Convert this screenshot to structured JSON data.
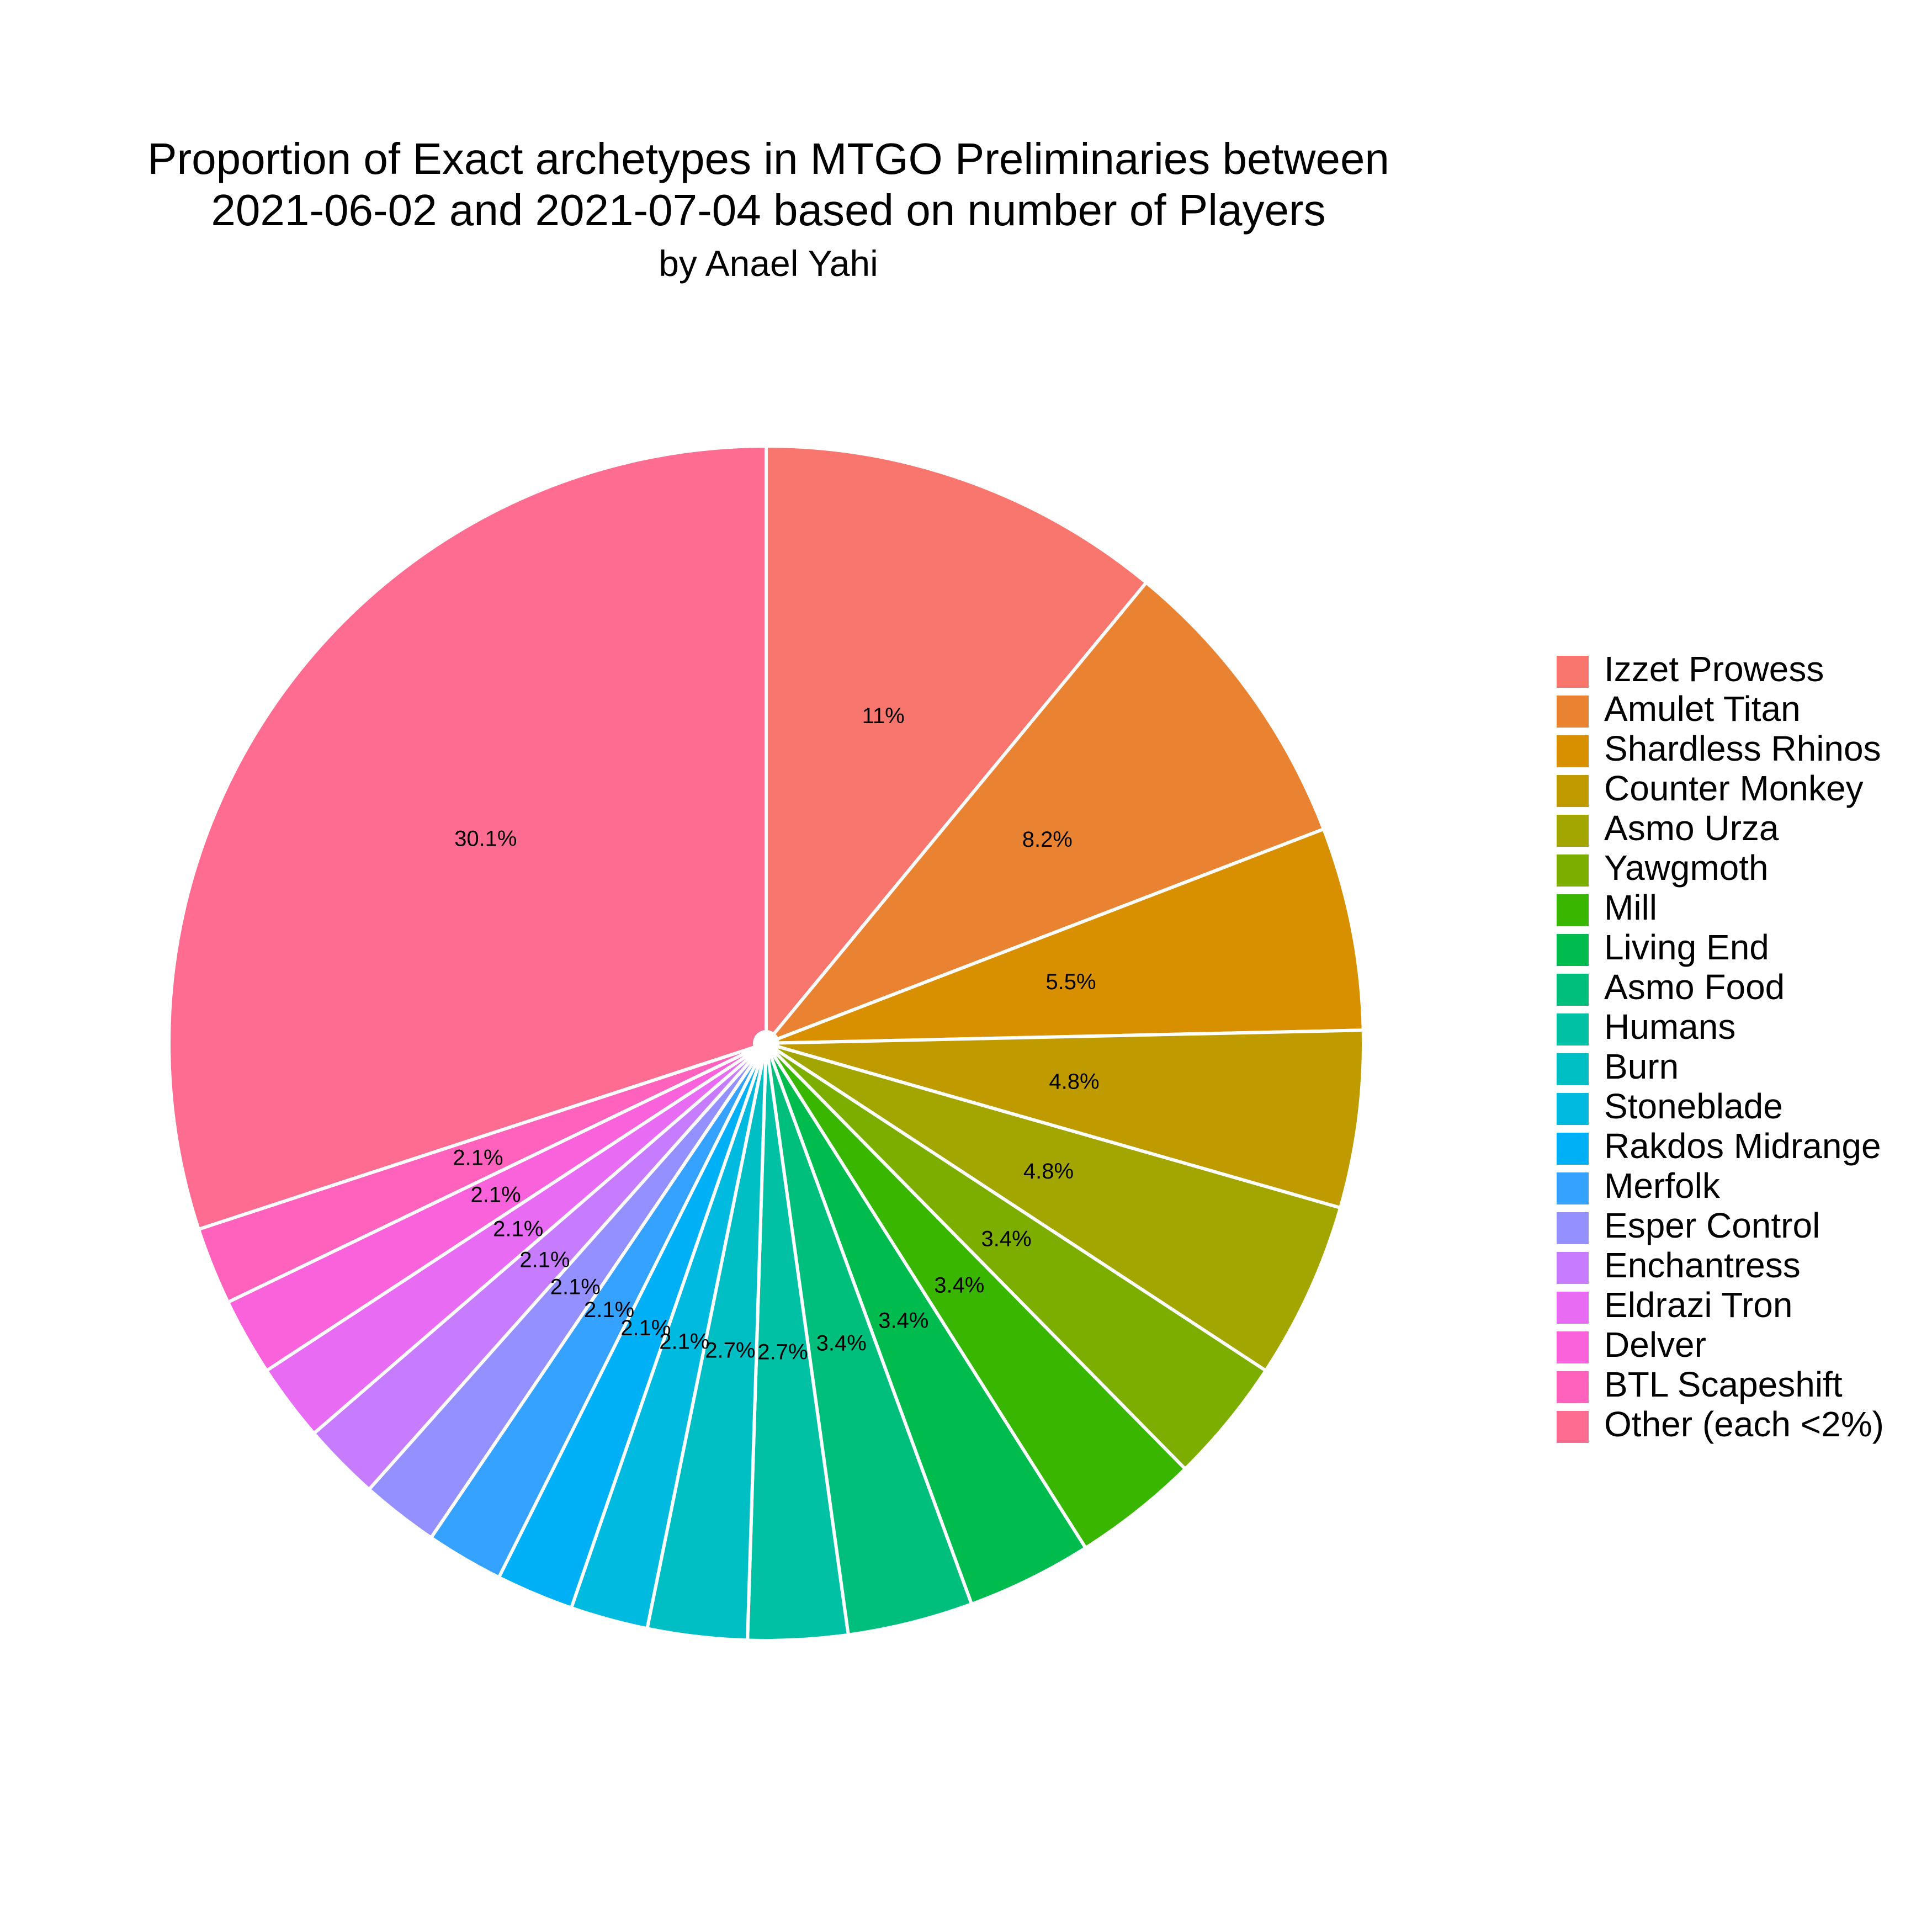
{
  "chart_data": {
    "type": "pie",
    "title_lines": [
      "Proportion of Exact archetypes in MTGO Preliminaries between",
      "2021-06-02 and 2021-07-04 based on number of Players"
    ],
    "subtitle": "by Anael Yahi",
    "legend_position": "right",
    "direction": "clockwise",
    "start_angle": "12 o'clock",
    "slices": [
      {
        "name": "Izzet Prowess",
        "value": 11.0,
        "label": "11%",
        "color": "#F8766D"
      },
      {
        "name": "Amulet Titan",
        "value": 8.2,
        "label": "8.2%",
        "color": "#EA8331"
      },
      {
        "name": "Shardless Rhinos",
        "value": 5.5,
        "label": "5.5%",
        "color": "#D89000"
      },
      {
        "name": "Counter Monkey",
        "value": 4.8,
        "label": "4.8%",
        "color": "#C09B00"
      },
      {
        "name": "Asmo Urza",
        "value": 4.8,
        "label": "4.8%",
        "color": "#A3A500"
      },
      {
        "name": "Yawgmoth",
        "value": 3.4,
        "label": "3.4%",
        "color": "#7CAE00"
      },
      {
        "name": "Mill",
        "value": 3.4,
        "label": "3.4%",
        "color": "#39B600"
      },
      {
        "name": "Living End",
        "value": 3.4,
        "label": "3.4%",
        "color": "#00BB4E"
      },
      {
        "name": "Asmo Food",
        "value": 3.4,
        "label": "3.4%",
        "color": "#00BF7D"
      },
      {
        "name": "Humans",
        "value": 2.7,
        "label": "2.7%",
        "color": "#00C1A3"
      },
      {
        "name": "Burn",
        "value": 2.7,
        "label": "2.7%",
        "color": "#00BFC4"
      },
      {
        "name": "Stoneblade",
        "value": 2.1,
        "label": "2.1%",
        "color": "#00BAE0"
      },
      {
        "name": "Rakdos Midrange",
        "value": 2.1,
        "label": "2.1%",
        "color": "#00B0F6"
      },
      {
        "name": "Merfolk",
        "value": 2.1,
        "label": "2.1%",
        "color": "#35A2FF"
      },
      {
        "name": "Esper Control",
        "value": 2.1,
        "label": "2.1%",
        "color": "#9590FF"
      },
      {
        "name": "Enchantress",
        "value": 2.1,
        "label": "2.1%",
        "color": "#C77CFF"
      },
      {
        "name": "Eldrazi Tron",
        "value": 2.1,
        "label": "2.1%",
        "color": "#E76BF3"
      },
      {
        "name": "Delver",
        "value": 2.1,
        "label": "2.1%",
        "color": "#FA62DB"
      },
      {
        "name": "BTL Scapeshift",
        "value": 2.1,
        "label": "2.1%",
        "color": "#FF62BC"
      },
      {
        "name": "Other (each <2%)",
        "value": 30.1,
        "label": "30.1%",
        "color": "#FF6C91"
      }
    ]
  }
}
